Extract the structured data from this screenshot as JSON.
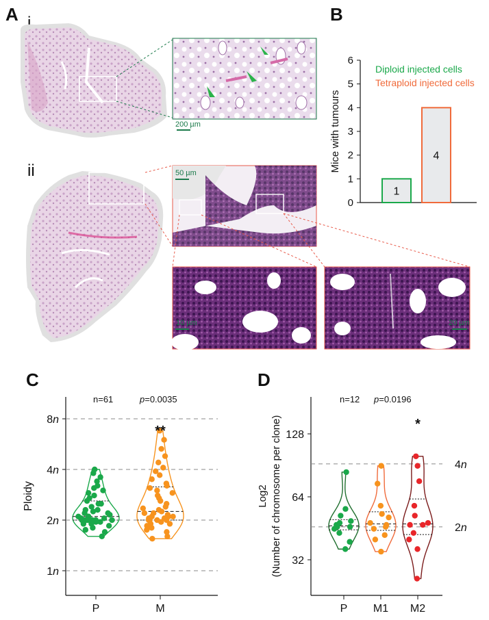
{
  "panels": {
    "A": "A",
    "A_i": "i",
    "A_ii": "ii",
    "B": "B",
    "C": "C",
    "D": "D"
  },
  "panel_a": {
    "scale_200": "200 µm",
    "scale_50": "50 µm",
    "scale_10": "10 µm",
    "scale_20": "20 µm"
  },
  "chart_data": [
    {
      "id": "B",
      "type": "bar",
      "ylabel": "Mice with tumours",
      "ylim": [
        0,
        6
      ],
      "yticks": [
        "0",
        "1",
        "2",
        "3",
        "4",
        "5",
        "6"
      ],
      "categories": [
        "Diploid injected cells",
        "Tetraploid injected cells"
      ],
      "values": [
        1,
        4
      ],
      "value_labels": [
        "1",
        "4"
      ],
      "legend": [
        "Diploid injected cells",
        "Tetraploid injected cells"
      ],
      "colors": [
        "#1aa84a",
        "#f06a3a"
      ],
      "bar_fill": "#e8eaec"
    },
    {
      "id": "C",
      "type": "scatter",
      "ylabel": "Ploidy",
      "yscale": "log2",
      "yticks": [
        "1n",
        "2n",
        "4n",
        "8n"
      ],
      "ytick_values": [
        1,
        2,
        4,
        8
      ],
      "categories": [
        "P",
        "M"
      ],
      "annotation_n": "n=61",
      "annotation_p": "p=0.0035",
      "significance": "**",
      "colors": [
        "#1aa84a",
        "#f7931e"
      ],
      "series": [
        {
          "name": "P",
          "values": [
            1.6,
            1.7,
            1.75,
            1.8,
            1.85,
            1.9,
            1.9,
            1.95,
            1.95,
            2.0,
            2.0,
            2.0,
            2.0,
            2.0,
            2.0,
            2.0,
            2.05,
            2.05,
            2.1,
            2.1,
            2.1,
            2.15,
            2.2,
            2.2,
            2.25,
            2.3,
            2.3,
            2.4,
            2.5,
            2.5,
            2.6,
            2.7,
            2.8,
            2.9,
            3.0,
            3.1,
            3.2,
            3.4,
            3.6,
            3.8,
            4.0
          ]
        },
        {
          "name": "M",
          "values": [
            1.55,
            1.6,
            1.7,
            1.75,
            1.8,
            1.85,
            1.9,
            1.9,
            1.95,
            2.0,
            2.0,
            2.0,
            2.0,
            2.05,
            2.05,
            2.1,
            2.1,
            2.1,
            2.15,
            2.2,
            2.2,
            2.25,
            2.3,
            2.35,
            2.4,
            2.5,
            2.6,
            2.7,
            2.8,
            2.9,
            3.0,
            3.1,
            3.2,
            3.3,
            3.5,
            3.7,
            3.9,
            4.1,
            4.4,
            4.8,
            5.3,
            6.0,
            6.8
          ]
        }
      ]
    },
    {
      "id": "D",
      "type": "scatter",
      "ylabel": "Log2",
      "ylabel2": "(Number of chromosome per clone)",
      "yscale": "log2",
      "yticks": [
        "32",
        "64",
        "128"
      ],
      "ytick_values": [
        32,
        64,
        128
      ],
      "ref_lines": [
        "2n",
        "4n"
      ],
      "ref_values": [
        46,
        92
      ],
      "categories": [
        "P",
        "M1",
        "M2"
      ],
      "annotation_n": "n=12",
      "annotation_p": "p=0.0196",
      "significance": "*",
      "colors": [
        "#1aa84a",
        "#f7931e",
        "#e8262a"
      ],
      "outline_colors": [
        "#1f6e2e",
        "#f06a3a",
        "#7a1a1a"
      ],
      "series": [
        {
          "name": "P",
          "values": [
            36,
            39,
            43,
            45,
            46,
            46,
            47,
            48,
            49,
            52,
            56,
            84
          ]
        },
        {
          "name": "M1",
          "values": [
            35,
            40,
            42,
            45,
            46,
            47,
            48,
            51,
            53,
            58,
            74,
            90
          ]
        },
        {
          "name": "M2",
          "values": [
            26,
            36,
            40,
            43,
            47,
            47,
            48,
            52,
            58,
            76,
            90,
            100
          ]
        }
      ]
    }
  ]
}
